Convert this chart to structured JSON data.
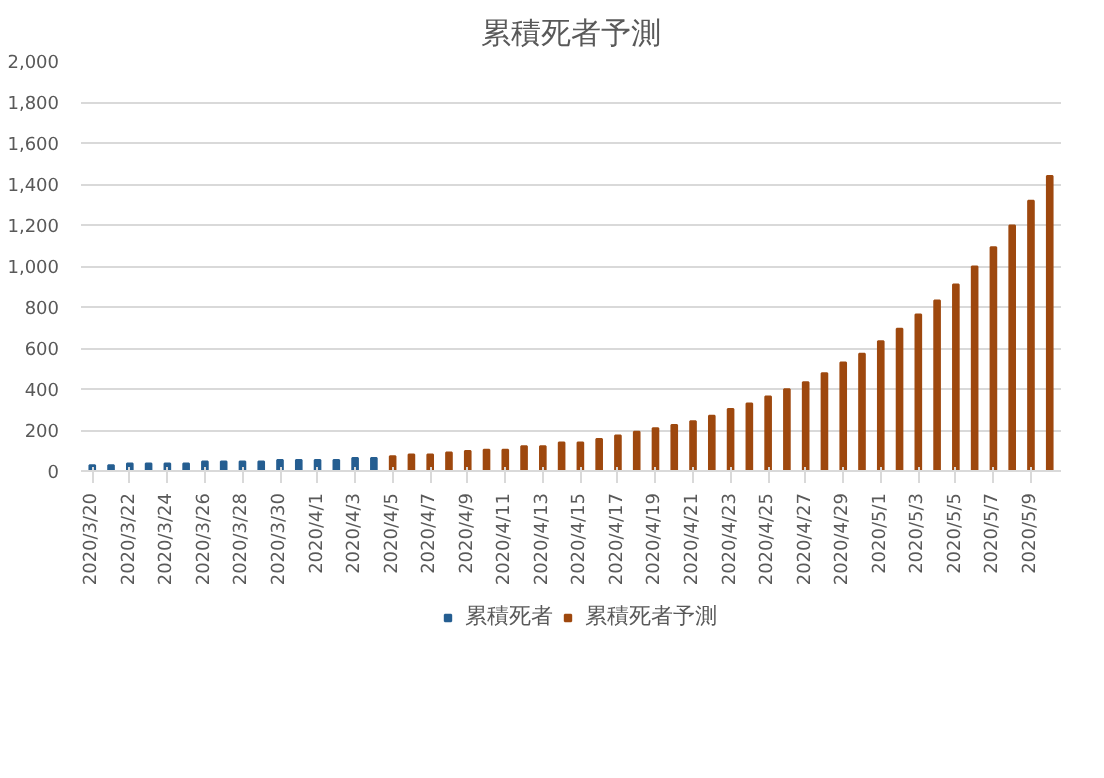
{
  "chart_data": {
    "type": "bar",
    "title": "累積死者予測",
    "categories": [
      "2020/3/20",
      null,
      "2020/3/22",
      null,
      "2020/3/24",
      null,
      "2020/3/26",
      null,
      "2020/3/28",
      null,
      "2020/3/30",
      null,
      "2020/4/1",
      null,
      "2020/4/3",
      null,
      "2020/4/5",
      null,
      "2020/4/7",
      null,
      "2020/4/9",
      null,
      "2020/4/11",
      null,
      "2020/4/13",
      null,
      "2020/4/15",
      null,
      "2020/4/17",
      null,
      "2020/4/19",
      null,
      "2020/4/21",
      null,
      "2020/4/23",
      null,
      "2020/4/25",
      null,
      "2020/4/27",
      null,
      "2020/4/29",
      null,
      "2020/5/1",
      null,
      "2020/5/3",
      null,
      "2020/5/5",
      null,
      "2020/5/7",
      null,
      "2020/5/9",
      null
    ],
    "series": [
      {
        "name": "累積死者",
        "color": "#255e91",
        "values": [
          28,
          28,
          36,
          36,
          36,
          36,
          46,
          46,
          46,
          46,
          54,
          54,
          54,
          54,
          63,
          63,
          null,
          null,
          null,
          null,
          null,
          null,
          null,
          null,
          null,
          null,
          null,
          null,
          null,
          null,
          null,
          null,
          null,
          null,
          null,
          null,
          null,
          null,
          null,
          null,
          null,
          null,
          null,
          null,
          null,
          null,
          null,
          null,
          null,
          null,
          null,
          null
        ]
      },
      {
        "name": "累積死者予測",
        "color": "#9e480e",
        "values": [
          null,
          null,
          null,
          null,
          null,
          null,
          null,
          null,
          null,
          null,
          null,
          null,
          null,
          null,
          null,
          null,
          72,
          81,
          81,
          90,
          98,
          104,
          104,
          121,
          121,
          139,
          139,
          156,
          173,
          191,
          208,
          225,
          243,
          269,
          303,
          329,
          364,
          399,
          433,
          477,
          529,
          572,
          633,
          694,
          763,
          832,
          910,
          997,
          1092,
          1197,
          1318,
          1439
        ]
      }
    ],
    "ylim": [
      0,
      2000
    ],
    "yticks": [
      0,
      {
        "value": 200,
        "label": "200"
      },
      {
        "value": 400,
        "label": "400"
      },
      {
        "value": 600,
        "label": "600"
      },
      {
        "value": 800,
        "label": "800"
      },
      {
        "value": 1000,
        "label": "1,000"
      },
      {
        "value": 1200,
        "label": "1,200"
      },
      {
        "value": 1400,
        "label": "1,400"
      },
      {
        "value": 1600,
        "label": "1,600"
      },
      {
        "value": 1800,
        "label": "1,800"
      },
      {
        "value": 2000,
        "label": "2,000"
      }
    ],
    "grid": "y",
    "legend": "bottom"
  }
}
